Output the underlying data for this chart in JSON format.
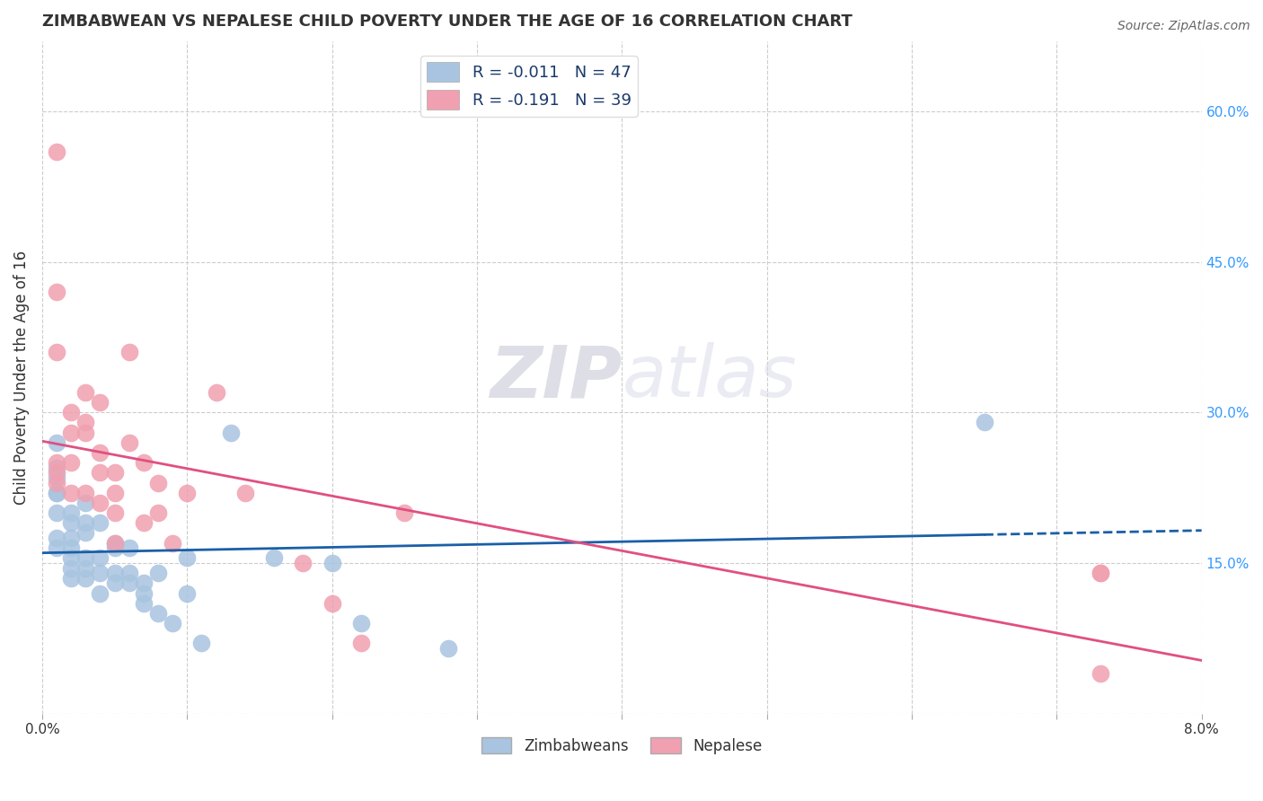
{
  "title": "ZIMBABWEAN VS NEPALESE CHILD POVERTY UNDER THE AGE OF 16 CORRELATION CHART",
  "source": "Source: ZipAtlas.com",
  "ylabel": "Child Poverty Under the Age of 16",
  "xlim": [
    0.0,
    0.08
  ],
  "ylim": [
    0.0,
    0.67
  ],
  "xticks": [
    0.0,
    0.01,
    0.02,
    0.03,
    0.04,
    0.05,
    0.06,
    0.07,
    0.08
  ],
  "xtick_labels": [
    "0.0%",
    "",
    "",
    "",
    "",
    "",
    "",
    "",
    "8.0%"
  ],
  "right_yticks": [
    0.0,
    0.15,
    0.3,
    0.45,
    0.6
  ],
  "right_ytick_labels": [
    "",
    "15.0%",
    "30.0%",
    "45.0%",
    "60.0%"
  ],
  "zim_color": "#a8c4e0",
  "nep_color": "#f0a0b0",
  "zim_line_color": "#1a5fa8",
  "nep_line_color": "#e05080",
  "watermark_zip": "ZIP",
  "watermark_atlas": "atlas",
  "zim_points_x": [
    0.001,
    0.001,
    0.001,
    0.001,
    0.001,
    0.001,
    0.001,
    0.002,
    0.002,
    0.002,
    0.002,
    0.002,
    0.002,
    0.002,
    0.003,
    0.003,
    0.003,
    0.003,
    0.003,
    0.003,
    0.004,
    0.004,
    0.004,
    0.004,
    0.005,
    0.005,
    0.005,
    0.005,
    0.006,
    0.006,
    0.006,
    0.007,
    0.007,
    0.007,
    0.008,
    0.008,
    0.009,
    0.01,
    0.01,
    0.011,
    0.013,
    0.016,
    0.02,
    0.022,
    0.028,
    0.065,
    0.001
  ],
  "zim_points_y": [
    0.27,
    0.245,
    0.235,
    0.22,
    0.2,
    0.175,
    0.165,
    0.2,
    0.19,
    0.175,
    0.165,
    0.155,
    0.145,
    0.135,
    0.21,
    0.19,
    0.18,
    0.155,
    0.145,
    0.135,
    0.19,
    0.155,
    0.14,
    0.12,
    0.17,
    0.165,
    0.14,
    0.13,
    0.165,
    0.14,
    0.13,
    0.13,
    0.12,
    0.11,
    0.14,
    0.1,
    0.09,
    0.155,
    0.12,
    0.07,
    0.28,
    0.155,
    0.15,
    0.09,
    0.065,
    0.29,
    0.22
  ],
  "nep_points_x": [
    0.001,
    0.001,
    0.001,
    0.001,
    0.001,
    0.001,
    0.002,
    0.002,
    0.002,
    0.002,
    0.003,
    0.003,
    0.003,
    0.003,
    0.004,
    0.004,
    0.004,
    0.004,
    0.005,
    0.005,
    0.005,
    0.005,
    0.006,
    0.006,
    0.007,
    0.007,
    0.008,
    0.008,
    0.009,
    0.01,
    0.012,
    0.014,
    0.018,
    0.02,
    0.022,
    0.025,
    0.073,
    0.073,
    0.073
  ],
  "nep_points_y": [
    0.56,
    0.42,
    0.36,
    0.25,
    0.24,
    0.23,
    0.3,
    0.28,
    0.25,
    0.22,
    0.32,
    0.29,
    0.28,
    0.22,
    0.31,
    0.26,
    0.24,
    0.21,
    0.24,
    0.22,
    0.2,
    0.17,
    0.36,
    0.27,
    0.25,
    0.19,
    0.23,
    0.2,
    0.17,
    0.22,
    0.32,
    0.22,
    0.15,
    0.11,
    0.07,
    0.2,
    0.14,
    0.14,
    0.04
  ],
  "grid_color": "#cccccc",
  "bg_color": "#ffffff"
}
